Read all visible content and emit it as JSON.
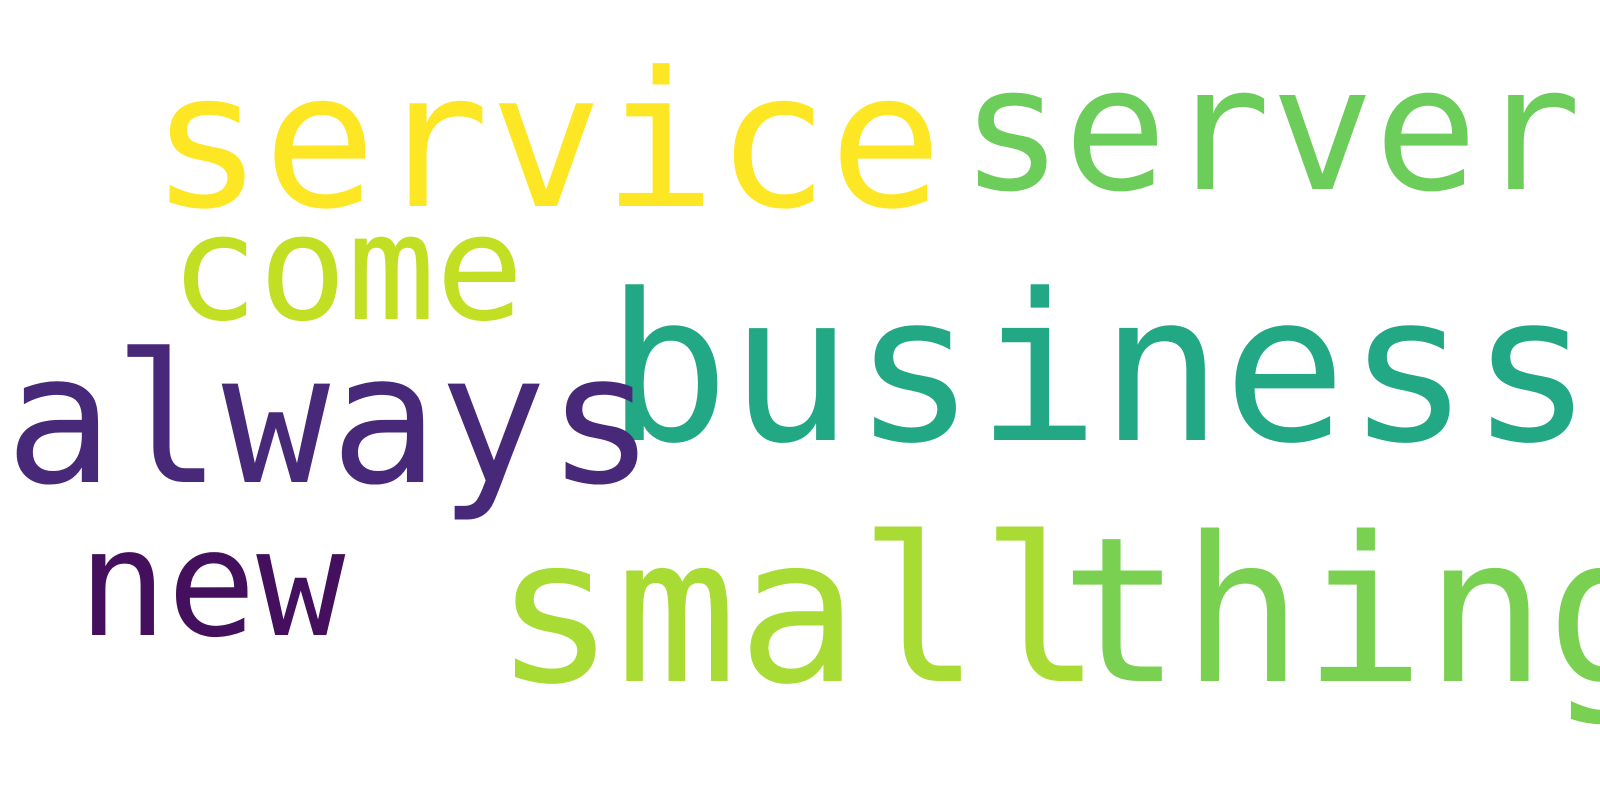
{
  "words": [
    {
      "id": "service",
      "text": "service",
      "color": "#fde725"
    },
    {
      "id": "server",
      "text": "server",
      "color": "#6ccd5a"
    },
    {
      "id": "come",
      "text": "come",
      "color": "#c2df23"
    },
    {
      "id": "business",
      "text": "business",
      "color": "#22a884"
    },
    {
      "id": "always",
      "text": "always",
      "color": "#482878"
    },
    {
      "id": "new",
      "text": "new",
      "color": "#440f5c"
    },
    {
      "id": "small",
      "text": "small",
      "color": "#a8db34"
    },
    {
      "id": "thing",
      "text": "thing",
      "color": "#7ad151"
    }
  ]
}
